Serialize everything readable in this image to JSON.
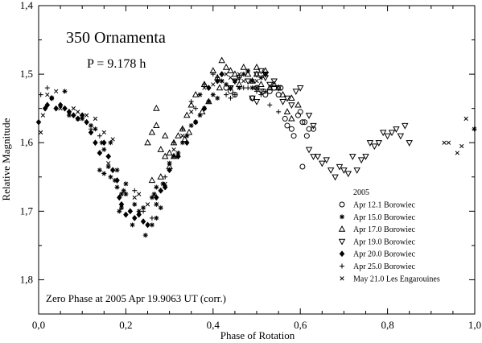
{
  "chart_data": {
    "type": "scatter",
    "title": "350 Ornamenta",
    "subtitle": "P = 9.178 h",
    "xlabel": "Phase of Rotation",
    "ylabel": "Relative Magnitude",
    "footnote": "Zero Phase at 2005 Apr 19.9063 UT (corr.)",
    "xlim": [
      0.0,
      1.0
    ],
    "ylim": [
      1.4,
      1.85
    ],
    "y_inverted": true,
    "grid": false,
    "legend_position": "bottom-right",
    "legend_title": "2005",
    "x_ticks": [
      "0,0",
      "0,2",
      "0,4",
      "0,6",
      "0,8",
      "1,0"
    ],
    "y_ticks": [
      "1,4",
      "1,5",
      "1,6",
      "1,7",
      "1,8"
    ],
    "series": [
      {
        "name": "Apr 12.1 Borowiec",
        "marker": "circle-open",
        "points": [
          [
            0.43,
            1.52
          ],
          [
            0.44,
            1.525
          ],
          [
            0.45,
            1.53
          ],
          [
            0.49,
            1.535
          ],
          [
            0.5,
            1.52
          ],
          [
            0.515,
            1.525
          ],
          [
            0.52,
            1.53
          ],
          [
            0.53,
            1.525
          ],
          [
            0.54,
            1.52
          ],
          [
            0.55,
            1.53
          ],
          [
            0.555,
            1.52
          ],
          [
            0.565,
            1.565
          ],
          [
            0.57,
            1.575
          ],
          [
            0.58,
            1.58
          ],
          [
            0.585,
            1.59
          ],
          [
            0.595,
            1.56
          ],
          [
            0.6,
            1.555
          ],
          [
            0.605,
            1.57
          ],
          [
            0.61,
            1.57
          ],
          [
            0.62,
            1.58
          ],
          [
            0.63,
            1.58
          ],
          [
            0.605,
            1.635
          ],
          [
            0.615,
            1.59
          ]
        ]
      },
      {
        "name": "Apr 15.0 Borowiec",
        "marker": "asterisk",
        "points": [
          [
            0.06,
            1.525
          ],
          [
            0.07,
            1.56
          ],
          [
            0.09,
            1.565
          ],
          [
            0.1,
            1.565
          ],
          [
            0.12,
            1.575
          ],
          [
            0.13,
            1.58
          ],
          [
            0.145,
            1.6
          ],
          [
            0.15,
            1.61
          ],
          [
            0.165,
            1.6
          ],
          [
            0.14,
            1.64
          ],
          [
            0.15,
            1.645
          ],
          [
            0.16,
            1.635
          ],
          [
            0.165,
            1.65
          ],
          [
            0.175,
            1.655
          ],
          [
            0.18,
            1.665
          ],
          [
            0.19,
            1.675
          ],
          [
            0.195,
            1.67
          ],
          [
            0.2,
            1.675
          ],
          [
            0.185,
            1.7
          ],
          [
            0.19,
            1.695
          ],
          [
            0.22,
            1.69
          ],
          [
            0.23,
            1.7
          ],
          [
            0.24,
            1.695
          ],
          [
            0.215,
            1.72
          ],
          [
            0.245,
            1.735
          ],
          [
            0.26,
            1.72
          ],
          [
            0.27,
            1.71
          ],
          [
            0.28,
            1.695
          ],
          [
            0.26,
            1.68
          ],
          [
            0.265,
            1.675
          ],
          [
            0.27,
            1.665
          ],
          [
            0.285,
            1.66
          ],
          [
            0.3,
            1.63
          ],
          [
            0.31,
            1.62
          ],
          [
            0.32,
            1.615
          ],
          [
            0.33,
            1.6
          ],
          [
            0.34,
            1.59
          ],
          [
            0.35,
            1.575
          ],
          [
            0.36,
            1.57
          ],
          [
            0.37,
            1.56
          ],
          [
            0.38,
            1.55
          ],
          [
            0.39,
            1.54
          ],
          [
            0.4,
            1.53
          ],
          [
            0.41,
            1.535
          ],
          [
            0.42,
            1.51
          ],
          [
            0.43,
            1.515
          ],
          [
            0.44,
            1.52
          ],
          [
            0.45,
            1.51
          ],
          [
            0.46,
            1.52
          ],
          [
            0.47,
            1.5
          ],
          [
            0.48,
            1.495
          ],
          [
            0.49,
            1.51
          ],
          [
            0.5,
            1.52
          ],
          [
            0.51,
            1.505
          ],
          [
            0.52,
            1.5
          ]
        ]
      },
      {
        "name": "Apr 17.0 Borowiec",
        "marker": "triangle-up-open",
        "points": [
          [
            0.26,
            1.585
          ],
          [
            0.27,
            1.575
          ],
          [
            0.29,
            1.59
          ],
          [
            0.29,
            1.62
          ],
          [
            0.3,
            1.615
          ],
          [
            0.31,
            1.6
          ],
          [
            0.32,
            1.59
          ],
          [
            0.33,
            1.58
          ],
          [
            0.34,
            1.56
          ],
          [
            0.35,
            1.545
          ],
          [
            0.36,
            1.53
          ],
          [
            0.38,
            1.515
          ],
          [
            0.4,
            1.495
          ],
          [
            0.41,
            1.505
          ],
          [
            0.415,
            1.52
          ],
          [
            0.42,
            1.48
          ],
          [
            0.43,
            1.49
          ],
          [
            0.44,
            1.495
          ],
          [
            0.45,
            1.5
          ],
          [
            0.46,
            1.515
          ],
          [
            0.47,
            1.49
          ],
          [
            0.48,
            1.5
          ],
          [
            0.49,
            1.51
          ],
          [
            0.5,
            1.5
          ],
          [
            0.51,
            1.515
          ],
          [
            0.52,
            1.495
          ],
          [
            0.53,
            1.52
          ],
          [
            0.54,
            1.515
          ],
          [
            0.55,
            1.52
          ],
          [
            0.56,
            1.53
          ],
          [
            0.58,
            1.535
          ],
          [
            0.595,
            1.545
          ],
          [
            0.57,
            1.555
          ],
          [
            0.58,
            1.565
          ],
          [
            0.27,
            1.55
          ],
          [
            0.25,
            1.6
          ],
          [
            0.28,
            1.61
          ],
          [
            0.31,
            1.62
          ],
          [
            0.26,
            1.655
          ],
          [
            0.28,
            1.65
          ],
          [
            0.3,
            1.635
          ],
          [
            0.335,
            1.595
          ],
          [
            0.345,
            1.585
          ],
          [
            0.375,
            1.555
          ],
          [
            0.39,
            1.54
          ],
          [
            0.5,
            1.49
          ]
        ]
      },
      {
        "name": "Apr 19.0 Borowiec",
        "marker": "triangle-down-open",
        "points": [
          [
            0.44,
            1.52
          ],
          [
            0.45,
            1.51
          ],
          [
            0.46,
            1.505
          ],
          [
            0.48,
            1.51
          ],
          [
            0.49,
            1.535
          ],
          [
            0.5,
            1.54
          ],
          [
            0.51,
            1.525
          ],
          [
            0.52,
            1.5
          ],
          [
            0.53,
            1.515
          ],
          [
            0.54,
            1.51
          ],
          [
            0.55,
            1.52
          ],
          [
            0.56,
            1.54
          ],
          [
            0.57,
            1.535
          ],
          [
            0.58,
            1.545
          ],
          [
            0.59,
            1.525
          ],
          [
            0.6,
            1.52
          ],
          [
            0.62,
            1.56
          ],
          [
            0.63,
            1.575
          ],
          [
            0.62,
            1.61
          ],
          [
            0.63,
            1.62
          ],
          [
            0.64,
            1.62
          ],
          [
            0.65,
            1.63
          ],
          [
            0.66,
            1.625
          ],
          [
            0.67,
            1.64
          ],
          [
            0.68,
            1.65
          ],
          [
            0.69,
            1.635
          ],
          [
            0.7,
            1.64
          ],
          [
            0.71,
            1.645
          ],
          [
            0.72,
            1.62
          ],
          [
            0.73,
            1.64
          ],
          [
            0.74,
            1.625
          ],
          [
            0.75,
            1.62
          ],
          [
            0.76,
            1.6
          ],
          [
            0.77,
            1.605
          ],
          [
            0.78,
            1.6
          ],
          [
            0.79,
            1.585
          ],
          [
            0.8,
            1.59
          ],
          [
            0.81,
            1.585
          ],
          [
            0.82,
            1.58
          ],
          [
            0.83,
            1.59
          ],
          [
            0.84,
            1.575
          ],
          [
            0.85,
            1.6
          ],
          [
            0.5,
            1.5
          ],
          [
            0.51,
            1.495
          ],
          [
            0.52,
            1.505
          ]
        ]
      },
      {
        "name": "Apr 20.0 Borowiec",
        "marker": "diamond-filled",
        "points": [
          [
            0.0,
            1.57
          ],
          [
            0.015,
            1.55
          ],
          [
            0.02,
            1.545
          ],
          [
            0.03,
            1.535
          ],
          [
            0.04,
            1.55
          ],
          [
            0.05,
            1.545
          ],
          [
            0.06,
            1.55
          ],
          [
            0.07,
            1.555
          ],
          [
            0.08,
            1.56
          ],
          [
            0.09,
            1.565
          ],
          [
            0.1,
            1.56
          ],
          [
            0.11,
            1.57
          ],
          [
            0.12,
            1.585
          ],
          [
            0.13,
            1.6
          ],
          [
            0.14,
            1.615
          ],
          [
            0.15,
            1.6
          ],
          [
            0.16,
            1.62
          ],
          [
            0.17,
            1.64
          ],
          [
            0.18,
            1.655
          ],
          [
            0.185,
            1.68
          ],
          [
            0.19,
            1.69
          ],
          [
            0.2,
            1.705
          ],
          [
            0.21,
            1.7
          ],
          [
            0.22,
            1.71
          ],
          [
            0.23,
            1.705
          ],
          [
            0.24,
            1.715
          ],
          [
            0.25,
            1.72
          ],
          [
            0.27,
            1.68
          ],
          [
            0.28,
            1.67
          ],
          [
            0.29,
            1.665
          ],
          [
            0.3,
            1.64
          ],
          [
            0.32,
            1.62
          ],
          [
            0.34,
            1.6
          ],
          [
            0.36,
            1.57
          ],
          [
            0.38,
            1.55
          ],
          [
            0.39,
            1.52
          ],
          [
            0.41,
            1.51
          ],
          [
            0.42,
            1.5
          ]
        ]
      },
      {
        "name": "Apr 25.0 Borowiec",
        "marker": "plus",
        "points": [
          [
            0.005,
            1.53
          ],
          [
            0.02,
            1.52
          ],
          [
            0.04,
            1.55
          ],
          [
            0.1,
            1.56
          ],
          [
            0.12,
            1.58
          ],
          [
            0.14,
            1.59
          ],
          [
            0.16,
            1.62
          ],
          [
            0.18,
            1.64
          ],
          [
            0.2,
            1.66
          ],
          [
            0.22,
            1.67
          ],
          [
            0.24,
            1.7
          ],
          [
            0.26,
            1.71
          ],
          [
            0.27,
            1.69
          ],
          [
            0.28,
            1.67
          ],
          [
            0.29,
            1.65
          ],
          [
            0.31,
            1.6
          ],
          [
            0.33,
            1.58
          ],
          [
            0.35,
            1.54
          ],
          [
            0.36,
            1.55
          ],
          [
            0.37,
            1.53
          ],
          [
            0.38,
            1.515
          ],
          [
            0.4,
            1.5
          ],
          [
            0.41,
            1.505
          ],
          [
            0.43,
            1.53
          ],
          [
            0.44,
            1.535
          ],
          [
            0.45,
            1.53
          ],
          [
            0.46,
            1.505
          ],
          [
            0.47,
            1.52
          ],
          [
            0.48,
            1.52
          ],
          [
            0.49,
            1.52
          ],
          [
            0.5,
            1.525
          ],
          [
            0.51,
            1.53
          ],
          [
            0.52,
            1.525
          ],
          [
            0.53,
            1.545
          ],
          [
            0.55,
            1.555
          ]
        ]
      },
      {
        "name": "May 21.0 Les Engarouines",
        "marker": "cross",
        "points": [
          [
            0.005,
            1.585
          ],
          [
            0.01,
            1.56
          ],
          [
            0.02,
            1.53
          ],
          [
            0.03,
            1.535
          ],
          [
            0.04,
            1.525
          ],
          [
            0.05,
            1.55
          ],
          [
            0.08,
            1.55
          ],
          [
            0.09,
            1.555
          ],
          [
            0.11,
            1.56
          ],
          [
            0.13,
            1.565
          ],
          [
            0.15,
            1.585
          ],
          [
            0.17,
            1.595
          ],
          [
            0.16,
            1.63
          ],
          [
            0.18,
            1.64
          ],
          [
            0.2,
            1.66
          ],
          [
            0.22,
            1.68
          ],
          [
            0.23,
            1.675
          ],
          [
            0.25,
            1.69
          ],
          [
            0.27,
            1.69
          ],
          [
            0.29,
            1.66
          ],
          [
            0.3,
            1.63
          ],
          [
            0.31,
            1.61
          ],
          [
            0.33,
            1.59
          ],
          [
            0.35,
            1.555
          ],
          [
            0.37,
            1.53
          ],
          [
            0.38,
            1.52
          ],
          [
            0.4,
            1.515
          ],
          [
            0.42,
            1.51
          ],
          [
            0.43,
            1.5
          ],
          [
            0.44,
            1.505
          ],
          [
            0.45,
            1.51
          ],
          [
            0.46,
            1.5
          ],
          [
            0.47,
            1.51
          ],
          [
            0.49,
            1.52
          ],
          [
            0.5,
            1.51
          ],
          [
            0.93,
            1.6
          ],
          [
            0.94,
            1.6
          ],
          [
            0.96,
            1.615
          ],
          [
            0.97,
            1.605
          ],
          [
            0.98,
            1.565
          ]
        ]
      }
    ],
    "extra_points": [
      {
        "marker": "asterisk",
        "x": 0.999,
        "y": 1.58
      }
    ]
  }
}
